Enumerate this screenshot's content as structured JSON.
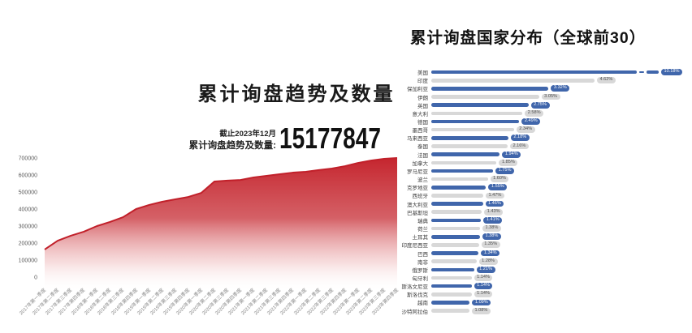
{
  "page": {
    "background": "#ffffff"
  },
  "left_chart": {
    "title": "累计询盘趋势及数量",
    "note": "截止2023年12月",
    "total_label": "累计询盘趋势及数量:",
    "total_value": "15177847"
  },
  "right_chart": {
    "title": "累计询盘国家分布（全球前30）"
  },
  "colors": {
    "area_fill_top": "#c5222b",
    "area_stroke": "#c1202a",
    "bar_blue": "#4066ab",
    "bar_gray": "#d8d8d8",
    "badge_blue_text": "#ffffff",
    "badge_gray_text": "#4d4d4d",
    "axis_text": "#595959",
    "title_text": "#1a1a1a"
  },
  "chart_data": [
    {
      "type": "area",
      "title": "累计询盘趋势及数量",
      "annotations": [
        "截止2023年12月",
        "累计询盘趋势及数量: 15177847"
      ],
      "ylim": [
        0,
        700000
      ],
      "yticks": [
        0,
        100000,
        200000,
        300000,
        400000,
        500000,
        600000,
        700000
      ],
      "grid": false,
      "legend_position": "none",
      "x": [
        "2017年第一季度",
        "2017年第二季度",
        "2017年第三季度",
        "2017年第四季度",
        "2018年第一季度",
        "2018年第二季度",
        "2018年第三季度",
        "2018年第四季度",
        "2019年第一季度",
        "2019年第二季度",
        "2019年第三季度",
        "2019年第四季度",
        "2020年第一季度",
        "2020年第二季度",
        "2020年第三季度",
        "2020年第四季度",
        "2021年第一季度",
        "2021年第二季度",
        "2021年第三季度",
        "2021年第四季度",
        "2022年第一季度",
        "2022年第二季度",
        "2022年第三季度",
        "2022年第四季度",
        "2023年第一季度",
        "2023年第二季度",
        "2023年第三季度",
        "2023年第四季度"
      ],
      "values": [
        162000,
        214000,
        243000,
        267000,
        300000,
        324000,
        352000,
        400000,
        424000,
        443000,
        457000,
        471000,
        495000,
        562000,
        567000,
        571000,
        586000,
        595000,
        605000,
        614000,
        619000,
        629000,
        638000,
        652000,
        671000,
        685000,
        695000,
        700000
      ]
    },
    {
      "type": "bar",
      "orientation": "horizontal",
      "title": "累计询盘国家分布（全球前30）",
      "grid": false,
      "legend_position": "none",
      "broken_bar_index": 0,
      "categories": [
        "美国",
        "印度",
        "保加利亚",
        "伊朗",
        "英国",
        "意大利",
        "德国",
        "墨西哥",
        "马来西亚",
        "泰国",
        "法国",
        "加拿大",
        "罗马尼亚",
        "波兰",
        "克罗地亚",
        "西班牙",
        "澳大利亚",
        "巴基斯坦",
        "瑞典",
        "荷兰",
        "土耳其",
        "印度尼西亚",
        "巴西",
        "南非",
        "俄罗斯",
        "匈牙利",
        "斯洛文尼亚",
        "斯洛伐克",
        "越南",
        "沙特阿拉伯"
      ],
      "values": [
        10.18,
        4.62,
        3.32,
        3.05,
        2.75,
        2.58,
        2.49,
        2.34,
        2.18,
        2.16,
        1.94,
        1.85,
        1.75,
        1.6,
        1.55,
        1.47,
        1.46,
        1.43,
        1.41,
        1.38,
        1.38,
        1.35,
        1.34,
        1.28,
        1.21,
        1.14,
        1.14,
        1.14,
        1.09,
        1.08
      ],
      "labels": [
        "10.18%",
        "4.62%",
        "3.32%",
        "3.05%",
        "2.75%",
        "2.58%",
        "2.49%",
        "2.34%",
        "2.18%",
        "2.16%",
        "1.94%",
        "1.85%",
        "1.75%",
        "1.60%",
        "1.55%",
        "1.47%",
        "1.46%",
        "1.43%",
        "1.41%",
        "1.38%",
        "1.38%",
        "1.35%",
        "1.34%",
        "1.28%",
        "1.21%",
        "1.14%",
        "1.14%",
        "1.14%",
        "1.09%",
        "1.08%"
      ]
    }
  ]
}
